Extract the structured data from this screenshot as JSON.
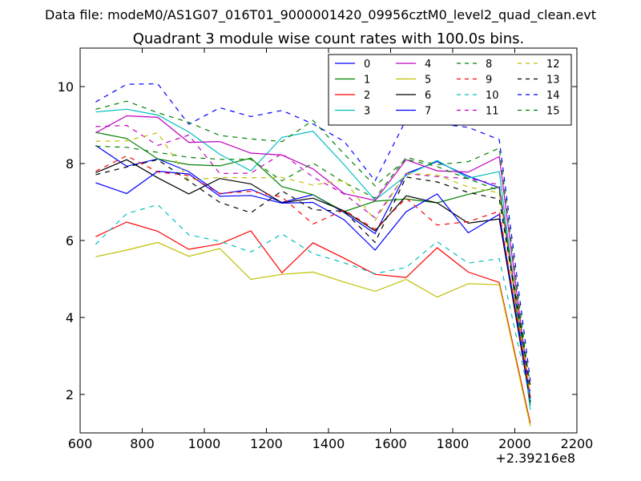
{
  "chart_data": {
    "type": "line",
    "suptitle": "Data file: modeM0/AS1G07_016T01_9000001420_09956cztM0_level2_quad_clean.evt",
    "title": "Quadrant 3 module wise count rates with 100.0s bins.",
    "xlabel": "",
    "ylabel": "",
    "x_offset_label": "+2.39216e8",
    "xlim": [
      600,
      2200
    ],
    "ylim": [
      1,
      11
    ],
    "xticks": [
      600,
      800,
      1000,
      1200,
      1400,
      1600,
      1800,
      2000,
      2200
    ],
    "yticks": [
      2,
      4,
      6,
      8,
      10
    ],
    "legend_position": "upper-right",
    "legend_columns": 4,
    "x": [
      650,
      750,
      850,
      950,
      1050,
      1150,
      1250,
      1350,
      1450,
      1550,
      1650,
      1750,
      1850,
      1950,
      2050
    ],
    "series": [
      {
        "name": "0",
        "color": "#0000ff",
        "dash": "solid",
        "values": [
          8.47,
          7.93,
          8.12,
          7.79,
          7.21,
          7.33,
          6.99,
          7.19,
          6.73,
          6.18,
          7.74,
          8.05,
          7.67,
          7.37,
          1.81
        ]
      },
      {
        "name": "1",
        "color": "#008000",
        "dash": "solid",
        "values": [
          8.81,
          8.65,
          8.12,
          7.97,
          7.94,
          8.14,
          7.4,
          7.19,
          6.75,
          7.02,
          7.08,
          6.98,
          7.2,
          7.39,
          1.72
        ]
      },
      {
        "name": "2",
        "color": "#ff0000",
        "dash": "solid",
        "values": [
          6.1,
          6.48,
          6.24,
          5.77,
          5.91,
          6.25,
          5.16,
          5.94,
          5.54,
          5.12,
          5.04,
          5.81,
          5.18,
          4.91,
          1.25
        ]
      },
      {
        "name": "3",
        "color": "#00bfbf",
        "dash": "solid",
        "values": [
          9.34,
          9.41,
          9.26,
          8.82,
          8.24,
          7.81,
          8.68,
          8.84,
          7.97,
          7.05,
          7.69,
          8.08,
          7.62,
          7.79,
          1.6
        ]
      },
      {
        "name": "4",
        "color": "#bf00bf",
        "dash": "solid",
        "values": [
          8.8,
          9.24,
          9.2,
          8.55,
          8.57,
          8.27,
          8.22,
          7.86,
          7.22,
          7.04,
          8.1,
          7.81,
          7.78,
          8.18,
          1.91
        ]
      },
      {
        "name": "5",
        "color": "#bfbf00",
        "dash": "solid",
        "values": [
          5.58,
          5.75,
          5.95,
          5.59,
          5.79,
          4.99,
          5.12,
          5.18,
          4.92,
          4.68,
          4.99,
          4.53,
          4.88,
          4.85,
          1.17
        ]
      },
      {
        "name": "6",
        "color": "#000000",
        "dash": "solid",
        "values": [
          7.76,
          8.1,
          7.63,
          7.21,
          7.61,
          7.47,
          6.98,
          7.1,
          6.77,
          6.25,
          7.16,
          6.98,
          6.45,
          6.56,
          1.8
        ]
      },
      {
        "name": "7",
        "color": "#0000ff",
        "dash": "solid",
        "values": [
          7.5,
          7.22,
          7.8,
          7.73,
          7.15,
          7.17,
          6.97,
          6.99,
          6.54,
          5.75,
          6.75,
          7.21,
          6.2,
          6.68,
          1.9
        ]
      },
      {
        "name": "8",
        "color": "#008000",
        "dash": "dashed",
        "values": [
          8.45,
          8.42,
          8.29,
          8.16,
          8.11,
          8.11,
          7.55,
          8.01,
          7.51,
          7.1,
          8.16,
          7.97,
          8.05,
          8.4,
          2.1
        ]
      },
      {
        "name": "9",
        "color": "#ff0000",
        "dash": "dashed",
        "values": [
          7.8,
          8.2,
          7.78,
          7.69,
          7.22,
          7.28,
          7.13,
          6.43,
          6.79,
          6.29,
          7.1,
          6.4,
          6.49,
          6.76,
          1.9
        ]
      },
      {
        "name": "10",
        "color": "#00bfbf",
        "dash": "dashed",
        "values": [
          5.9,
          6.7,
          6.93,
          6.15,
          5.98,
          5.7,
          6.17,
          5.66,
          5.42,
          5.14,
          5.3,
          5.97,
          5.41,
          5.53,
          1.85
        ]
      },
      {
        "name": "11",
        "color": "#bf00bf",
        "dash": "dashed",
        "values": [
          8.96,
          8.99,
          8.47,
          8.74,
          7.74,
          7.75,
          8.26,
          7.65,
          7.21,
          6.59,
          7.74,
          7.66,
          7.61,
          7.45,
          1.95
        ]
      },
      {
        "name": "12",
        "color": "#bfbf00",
        "dash": "dashed",
        "values": [
          8.58,
          8.59,
          8.8,
          7.57,
          7.64,
          7.63,
          7.64,
          7.44,
          7.57,
          6.52,
          7.75,
          7.7,
          7.39,
          7.24,
          2.0
        ]
      },
      {
        "name": "13",
        "color": "#000000",
        "dash": "dashed",
        "values": [
          7.71,
          7.91,
          8.1,
          7.55,
          6.99,
          6.72,
          7.29,
          6.8,
          6.76,
          5.95,
          7.65,
          7.52,
          7.25,
          7.08,
          2.2
        ]
      },
      {
        "name": "14",
        "color": "#0000ff",
        "dash": "dashed",
        "values": [
          9.6,
          10.06,
          10.07,
          9.02,
          9.45,
          9.22,
          9.38,
          9.03,
          8.58,
          7.55,
          9.14,
          9.04,
          8.94,
          8.62,
          2.35
        ]
      },
      {
        "name": "15",
        "color": "#008000",
        "dash": "dashed",
        "values": [
          9.41,
          9.62,
          9.32,
          9.07,
          8.73,
          8.64,
          8.57,
          9.12,
          8.25,
          7.42,
          8.11,
          7.92,
          7.6,
          7.3,
          2.25
        ]
      }
    ]
  }
}
